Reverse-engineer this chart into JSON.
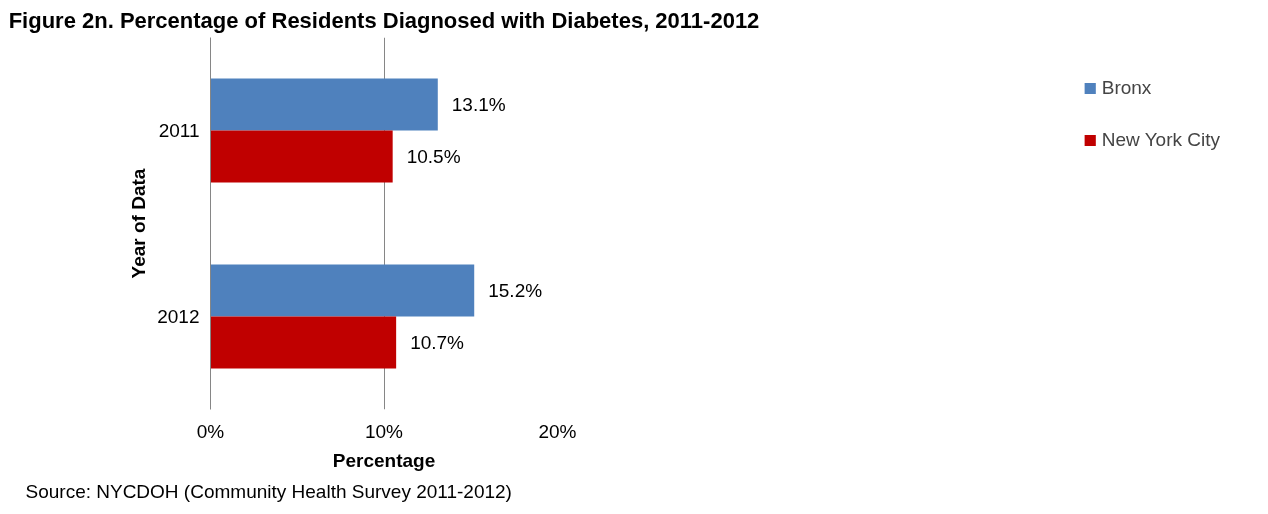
{
  "chart_data": {
    "type": "bar",
    "orientation": "horizontal",
    "title": "Figure 2n. Percentage of Residents Diagnosed with Diabetes, 2011-2012",
    "xlabel": "Percentage",
    "ylabel": "Year of Data",
    "categories": [
      "2011",
      "2012"
    ],
    "series": [
      {
        "name": "Bronx",
        "color": "#4f81bd",
        "values": [
          13.1,
          15.2
        ],
        "value_labels": [
          "13.1%",
          "15.2%"
        ]
      },
      {
        "name": "New York City",
        "color": "#c00000",
        "values": [
          10.5,
          10.7
        ],
        "value_labels": [
          "10.5%",
          "10.7%"
        ]
      }
    ],
    "xlim": [
      0,
      20
    ],
    "xticks": [
      {
        "value": 0,
        "label": "0%"
      },
      {
        "value": 10,
        "label": "10%"
      },
      {
        "value": 20,
        "label": "20%"
      }
    ],
    "grid": "x",
    "legend": "right",
    "annotations": [
      "Source: NYCDOH (Community Health Survey 2011-2012)"
    ]
  }
}
